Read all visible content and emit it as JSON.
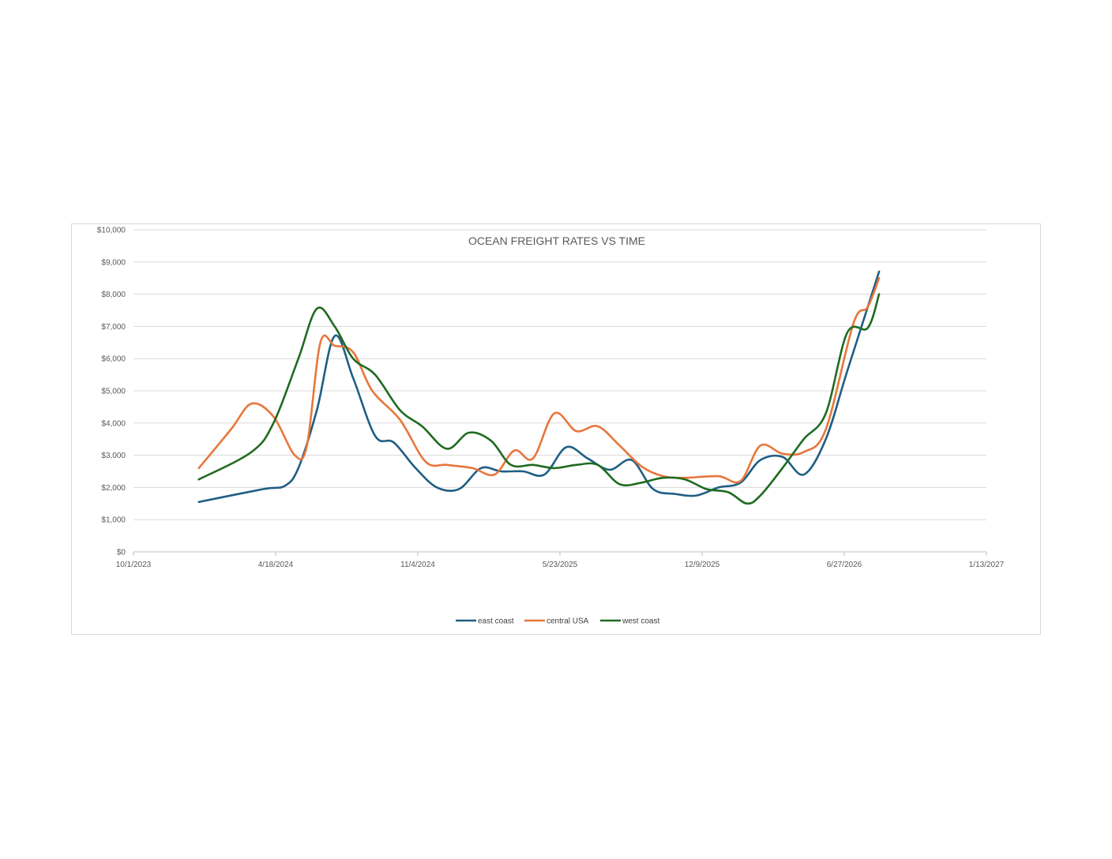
{
  "chart_data": {
    "type": "line",
    "title": "OCEAN FREIGHT RATES VS TIME",
    "xlabel": "",
    "ylabel": "",
    "y_ticks": [
      "$0",
      "$1,000",
      "$2,000",
      "$3,000",
      "$4,000",
      "$5,000",
      "$6,000",
      "$7,000",
      "$8,000",
      "$9,000",
      "$10,000"
    ],
    "x_ticks": [
      "10/1/2023",
      "4/18/2024",
      "11/4/2024",
      "5/23/2025",
      "12/9/2025",
      "6/27/2026",
      "1/13/2027"
    ],
    "xlim": [
      "2023-10-01",
      "2027-01-13"
    ],
    "ylim": [
      0,
      10000
    ],
    "grid": true,
    "legend_position": "bottom",
    "colors": {
      "east coast": "#1f5e84",
      "central USA": "#e8763b",
      "west coast": "#1f6b20"
    },
    "series": [
      {
        "name": "east coast",
        "points": [
          [
            "2024-01-01",
            1550
          ],
          [
            "2024-04-01",
            1950
          ],
          [
            "2024-05-01",
            2050
          ],
          [
            "2024-05-20",
            2600
          ],
          [
            "2024-06-15",
            4400
          ],
          [
            "2024-07-10",
            6700
          ],
          [
            "2024-08-05",
            5400
          ],
          [
            "2024-09-05",
            3600
          ],
          [
            "2024-10-01",
            3400
          ],
          [
            "2024-11-01",
            2600
          ],
          [
            "2024-12-01",
            2000
          ],
          [
            "2025-01-01",
            1950
          ],
          [
            "2025-02-01",
            2600
          ],
          [
            "2025-03-01",
            2500
          ],
          [
            "2025-04-01",
            2500
          ],
          [
            "2025-05-01",
            2400
          ],
          [
            "2025-06-01",
            3250
          ],
          [
            "2025-07-01",
            2900
          ],
          [
            "2025-08-01",
            2550
          ],
          [
            "2025-09-01",
            2850
          ],
          [
            "2025-10-01",
            1950
          ],
          [
            "2025-11-01",
            1800
          ],
          [
            "2025-12-01",
            1750
          ],
          [
            "2026-01-01",
            2000
          ],
          [
            "2026-02-01",
            2150
          ],
          [
            "2026-03-01",
            2850
          ],
          [
            "2026-04-01",
            2950
          ],
          [
            "2026-05-01",
            2400
          ],
          [
            "2026-06-01",
            3500
          ],
          [
            "2026-07-01",
            5600
          ],
          [
            "2026-08-15",
            8700
          ]
        ]
      },
      {
        "name": "central USA",
        "points": [
          [
            "2024-01-01",
            2600
          ],
          [
            "2024-02-15",
            3800
          ],
          [
            "2024-03-15",
            4600
          ],
          [
            "2024-04-15",
            4200
          ],
          [
            "2024-05-15",
            3000
          ],
          [
            "2024-06-01",
            3300
          ],
          [
            "2024-06-20",
            6500
          ],
          [
            "2024-07-10",
            6400
          ],
          [
            "2024-08-05",
            6200
          ],
          [
            "2024-09-01",
            5000
          ],
          [
            "2024-10-10",
            4100
          ],
          [
            "2024-11-15",
            2800
          ],
          [
            "2024-12-15",
            2700
          ],
          [
            "2025-01-20",
            2600
          ],
          [
            "2025-02-20",
            2400
          ],
          [
            "2025-03-20",
            3150
          ],
          [
            "2025-04-15",
            2900
          ],
          [
            "2025-05-15",
            4300
          ],
          [
            "2025-06-15",
            3750
          ],
          [
            "2025-07-15",
            3900
          ],
          [
            "2025-08-15",
            3300
          ],
          [
            "2025-09-15",
            2650
          ],
          [
            "2025-10-15",
            2350
          ],
          [
            "2025-11-15",
            2300
          ],
          [
            "2026-01-01",
            2350
          ],
          [
            "2026-02-01",
            2200
          ],
          [
            "2026-03-01",
            3300
          ],
          [
            "2026-04-01",
            3050
          ],
          [
            "2026-05-01",
            3100
          ],
          [
            "2026-06-01",
            3800
          ],
          [
            "2026-07-10",
            7100
          ],
          [
            "2026-07-30",
            7600
          ],
          [
            "2026-08-15",
            8500
          ]
        ]
      },
      {
        "name": "west coast",
        "points": [
          [
            "2024-01-01",
            2250
          ],
          [
            "2024-03-15",
            3100
          ],
          [
            "2024-04-15",
            4000
          ],
          [
            "2024-05-20",
            6000
          ],
          [
            "2024-06-15",
            7550
          ],
          [
            "2024-07-10",
            7000
          ],
          [
            "2024-08-05",
            6000
          ],
          [
            "2024-09-05",
            5500
          ],
          [
            "2024-10-10",
            4400
          ],
          [
            "2024-11-10",
            3900
          ],
          [
            "2024-12-15",
            3200
          ],
          [
            "2025-01-15",
            3700
          ],
          [
            "2025-02-15",
            3450
          ],
          [
            "2025-03-15",
            2700
          ],
          [
            "2025-04-15",
            2700
          ],
          [
            "2025-05-15",
            2600
          ],
          [
            "2025-06-15",
            2700
          ],
          [
            "2025-07-15",
            2700
          ],
          [
            "2025-08-15",
            2100
          ],
          [
            "2025-09-15",
            2150
          ],
          [
            "2025-10-15",
            2300
          ],
          [
            "2025-11-15",
            2250
          ],
          [
            "2025-12-15",
            1950
          ],
          [
            "2026-01-15",
            1850
          ],
          [
            "2026-02-10",
            1500
          ],
          [
            "2026-03-01",
            1750
          ],
          [
            "2026-04-01",
            2600
          ],
          [
            "2026-05-01",
            3500
          ],
          [
            "2026-06-01",
            4300
          ],
          [
            "2026-07-01",
            6800
          ],
          [
            "2026-07-30",
            6950
          ],
          [
            "2026-08-15",
            8000
          ]
        ]
      }
    ]
  }
}
